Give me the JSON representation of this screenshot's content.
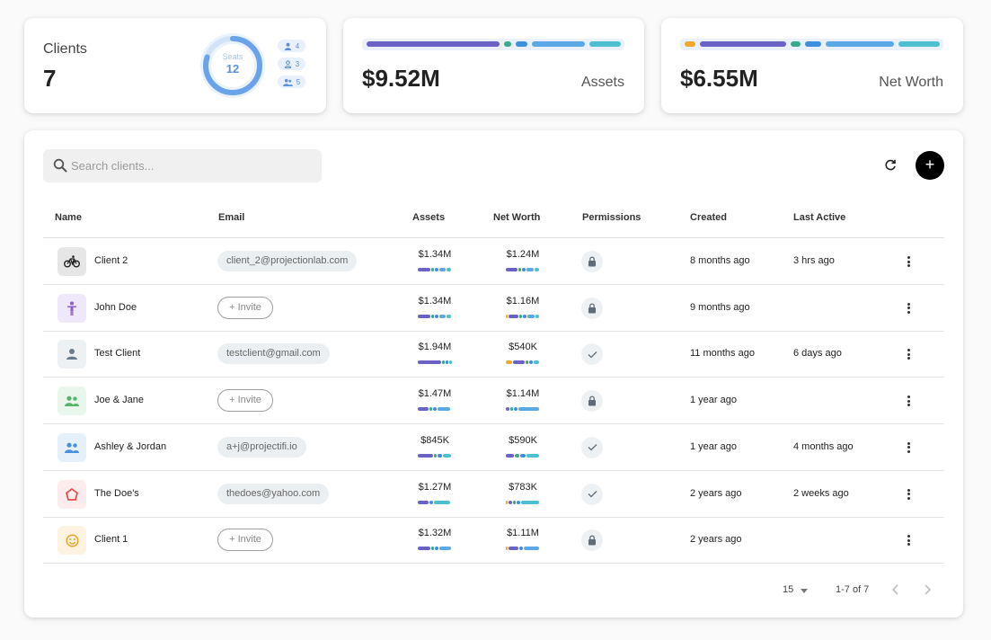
{
  "summary": {
    "clients_label": "Clients",
    "clients_count": "7",
    "seats_label": "Seats",
    "seats_count": "12",
    "seats_fill_fraction": 0.8,
    "seat_chips": [
      {
        "icon": "person-icon",
        "count": "4"
      },
      {
        "icon": "person-outline-icon",
        "count": "3"
      },
      {
        "icon": "group-icon",
        "count": "5"
      }
    ],
    "assets_value": "$9.52M",
    "assets_label": "Assets",
    "networth_value": "$6.55M",
    "networth_label": "Net Worth"
  },
  "colors": {
    "purple": "#6a62c4",
    "teal": "#3aa98c",
    "blue": "#3e8fdd",
    "lightblue": "#5aa9e6",
    "cyan": "#4cc0d0",
    "orange": "#f0a92e",
    "accent": "#000000"
  },
  "toolbar": {
    "search_placeholder": "Search clients...",
    "refresh_icon": "refresh-icon",
    "add_icon": "plus-icon",
    "add_label": "+"
  },
  "table": {
    "columns": [
      "Name",
      "Email",
      "Assets",
      "Net Worth",
      "Permissions",
      "Created",
      "Last Active"
    ],
    "invite_label": "+ Invite",
    "rows": [
      {
        "name": "Client 2",
        "avatar_icon": "bicycle-icon",
        "email": "client_2@projectionlab.com",
        "assets": "$1.34M",
        "networth": "$1.24M",
        "permission": "lock",
        "created": "8 months ago",
        "last_active": "3 hrs ago"
      },
      {
        "name": "John Doe",
        "avatar_icon": "person-standing-icon",
        "email": "",
        "assets": "$1.34M",
        "networth": "$1.16M",
        "permission": "lock",
        "created": "9 months ago",
        "last_active": ""
      },
      {
        "name": "Test Client",
        "avatar_icon": "person-icon",
        "email": "testclient@gmail.com",
        "assets": "$1.94M",
        "networth": "$540K",
        "permission": "check",
        "created": "11 months ago",
        "last_active": "6 days ago"
      },
      {
        "name": "Joe & Jane",
        "avatar_icon": "group-icon",
        "email": "",
        "assets": "$1.47M",
        "networth": "$1.14M",
        "permission": "lock",
        "created": "1 year ago",
        "last_active": ""
      },
      {
        "name": "Ashley & Jordan",
        "avatar_icon": "group-icon",
        "email": "a+j@projectifi.io",
        "assets": "$845K",
        "networth": "$590K",
        "permission": "check",
        "created": "1 year ago",
        "last_active": "4 months ago"
      },
      {
        "name": "The Doe's",
        "avatar_icon": "house-icon",
        "email": "thedoes@yahoo.com",
        "assets": "$1.27M",
        "networth": "$783K",
        "permission": "check",
        "created": "2 years ago",
        "last_active": "2 weeks ago"
      },
      {
        "name": "Client 1",
        "avatar_icon": "smiley-icon",
        "email": "",
        "assets": "$1.32M",
        "networth": "$1.11M",
        "permission": "lock",
        "created": "2 years ago",
        "last_active": ""
      }
    ]
  },
  "pagination": {
    "page_size": "15",
    "range": "1-7 of 7",
    "prev_icon": "chevron-left-icon",
    "next_icon": "chevron-right-icon"
  }
}
